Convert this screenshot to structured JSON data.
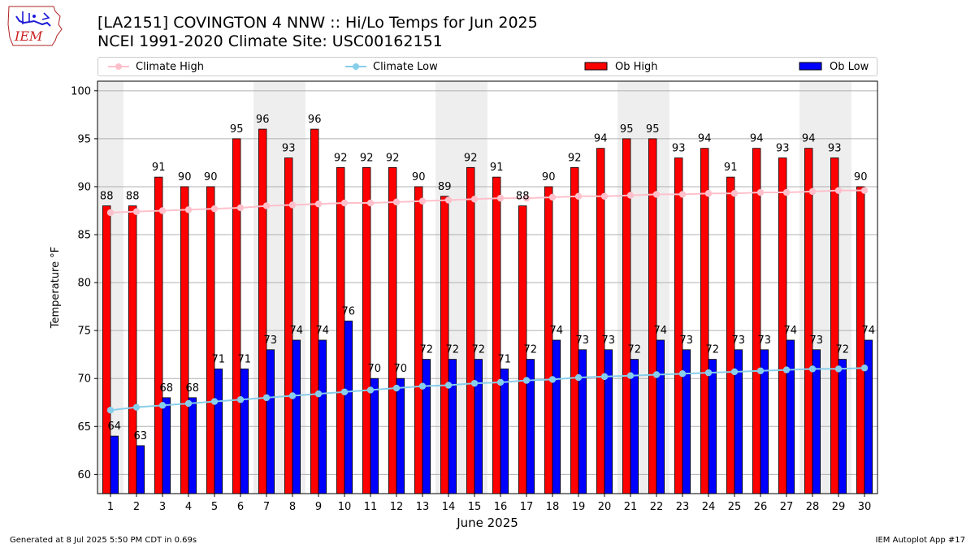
{
  "header": {
    "title_line1": "[LA2151] COVINGTON 4 NNW :: Hi/Lo Temps for Jun 2025",
    "title_line2": "NCEI 1991-2020 Climate Site: USC00162151",
    "logo_text": "IEM"
  },
  "legend": {
    "climate_high": "Climate High",
    "climate_low": "Climate Low",
    "ob_high": "Ob High",
    "ob_low": "Ob Low"
  },
  "footer": {
    "left": "Generated at 8 Jul 2025 5:50 PM CDT in 0.69s",
    "right": "IEM Autoplot App #17"
  },
  "colors": {
    "ob_high": "#ff0000",
    "ob_low": "#0000ff",
    "climate_high": "#ffc0cb",
    "climate_low": "#87ceeb",
    "weekend_shade": "#eeeeee",
    "grid": "#b0b0b0"
  },
  "chart_data": {
    "type": "bar",
    "xlabel": "June 2025",
    "ylabel": "Temperature °F",
    "ylim": [
      58,
      101
    ],
    "yticks": [
      60,
      65,
      70,
      75,
      80,
      85,
      90,
      95,
      100
    ],
    "grid": "horizontal",
    "legend_placement": "top",
    "categories": [
      "1",
      "2",
      "3",
      "4",
      "5",
      "6",
      "7",
      "8",
      "9",
      "10",
      "11",
      "12",
      "13",
      "14",
      "15",
      "16",
      "17",
      "18",
      "19",
      "20",
      "21",
      "22",
      "23",
      "24",
      "25",
      "26",
      "27",
      "28",
      "29",
      "30"
    ],
    "shaded_days": [
      "1",
      "7",
      "8",
      "14",
      "15",
      "21",
      "22",
      "28",
      "29"
    ],
    "series": [
      {
        "name": "Ob High",
        "kind": "bar",
        "values": [
          88,
          88,
          91,
          90,
          90,
          95,
          96,
          93,
          96,
          92,
          92,
          92,
          90,
          89,
          92,
          91,
          88,
          90,
          92,
          94,
          95,
          95,
          93,
          94,
          91,
          94,
          93,
          94,
          93,
          90
        ]
      },
      {
        "name": "Ob Low",
        "kind": "bar",
        "values": [
          64,
          63,
          68,
          68,
          71,
          71,
          73,
          74,
          74,
          76,
          70,
          70,
          72,
          72,
          72,
          71,
          72,
          74,
          73,
          73,
          72,
          74,
          73,
          72,
          73,
          73,
          74,
          73,
          72,
          74
        ]
      },
      {
        "name": "Climate High",
        "kind": "line",
        "values": [
          87.3,
          87.4,
          87.5,
          87.6,
          87.7,
          87.8,
          88.0,
          88.1,
          88.2,
          88.3,
          88.3,
          88.4,
          88.5,
          88.6,
          88.7,
          88.8,
          88.8,
          88.9,
          89.0,
          89.0,
          89.1,
          89.2,
          89.2,
          89.3,
          89.3,
          89.4,
          89.4,
          89.5,
          89.6,
          89.6
        ]
      },
      {
        "name": "Climate Low",
        "kind": "line",
        "values": [
          66.7,
          67.0,
          67.2,
          67.4,
          67.6,
          67.8,
          68.0,
          68.2,
          68.4,
          68.6,
          68.8,
          69.0,
          69.2,
          69.3,
          69.5,
          69.6,
          69.8,
          69.9,
          70.1,
          70.2,
          70.3,
          70.4,
          70.5,
          70.6,
          70.7,
          70.8,
          70.9,
          71.0,
          71.0,
          71.1
        ]
      }
    ]
  }
}
